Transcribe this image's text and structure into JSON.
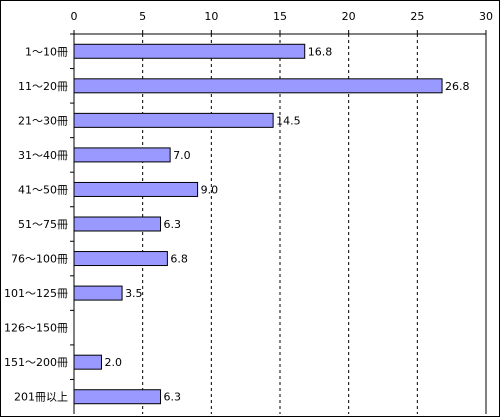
{
  "chart_data": {
    "type": "bar",
    "orientation": "horizontal",
    "title": "",
    "xlabel": "",
    "ylabel": "",
    "categories": [
      "1～10冊",
      "11～20冊",
      "21～30冊",
      "31～40冊",
      "41～50冊",
      "51～75冊",
      "76～100冊",
      "101～125冊",
      "126～150冊",
      "151～200冊",
      "201冊以上"
    ],
    "values": [
      16.8,
      26.8,
      14.5,
      7.0,
      9.0,
      6.3,
      6.8,
      3.5,
      null,
      2.0,
      6.3
    ],
    "data_labels": [
      "16.8",
      "26.8",
      "14.5",
      "7.0",
      "9.0",
      "6.3",
      "6.8",
      "3.5",
      "",
      "2.0",
      "6.3"
    ],
    "xlim": [
      0,
      30
    ],
    "x_ticks": [
      0,
      5,
      10,
      15,
      20,
      25,
      30
    ],
    "x_axis_position": "top",
    "grid": true,
    "grid_style": "dashed",
    "legend": "none",
    "colors": {
      "bar_fill": "#9999ff",
      "bar_stroke": "#000000",
      "grid": "#000000",
      "frame": "#000000"
    }
  }
}
